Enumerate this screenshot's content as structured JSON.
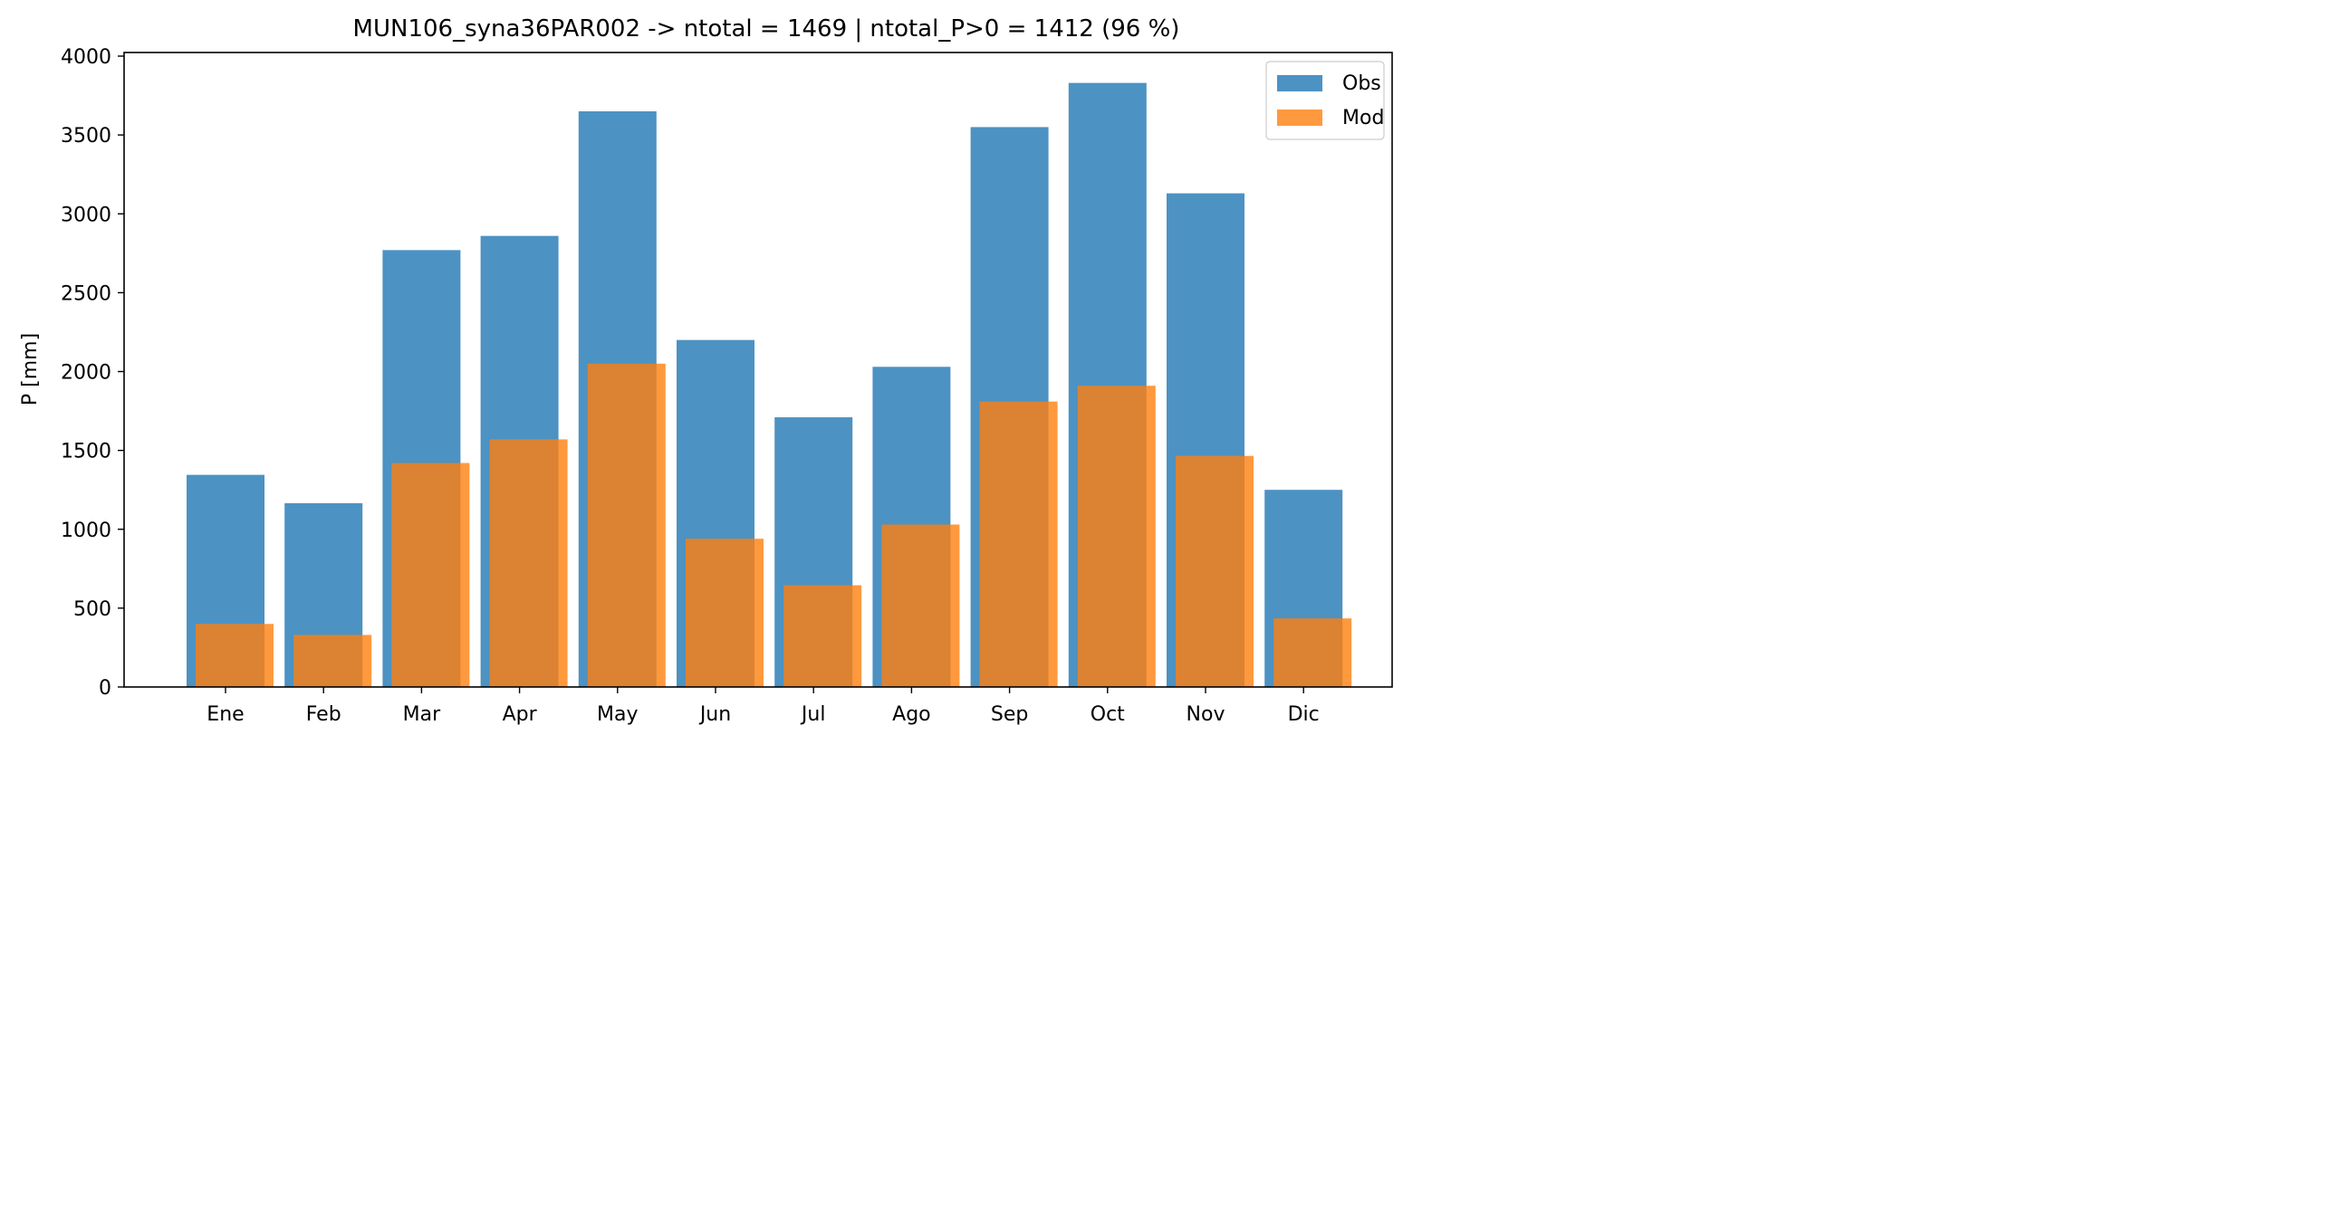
{
  "chart_data": {
    "type": "bar",
    "title": "MUN106_syna36PAR002 -> ntotal = 1469 | ntotal_P>0 = 1412 (96 %)",
    "xlabel": "",
    "ylabel": "P [mm]",
    "ylim": [
      0,
      4000
    ],
    "yticks": [
      0,
      500,
      1000,
      1500,
      2000,
      2500,
      3000,
      3500,
      4000
    ],
    "categories": [
      "Ene",
      "Feb",
      "Mar",
      "Apr",
      "May",
      "Jun",
      "Jul",
      "Ago",
      "Sep",
      "Oct",
      "Nov",
      "Dic"
    ],
    "series": [
      {
        "name": "Obs",
        "color": "#1f77b4",
        "values": [
          1345,
          1165,
          2770,
          2860,
          3650,
          2200,
          1710,
          2030,
          3550,
          3830,
          3130,
          1250
        ]
      },
      {
        "name": "Mod",
        "color": "#ff7f0e",
        "values": [
          400,
          330,
          1420,
          1570,
          2050,
          940,
          645,
          1030,
          1810,
          1910,
          1465,
          435
        ]
      }
    ],
    "legend": {
      "position": "top-right",
      "entries": [
        "Obs",
        "Mod"
      ]
    },
    "grid": false
  }
}
